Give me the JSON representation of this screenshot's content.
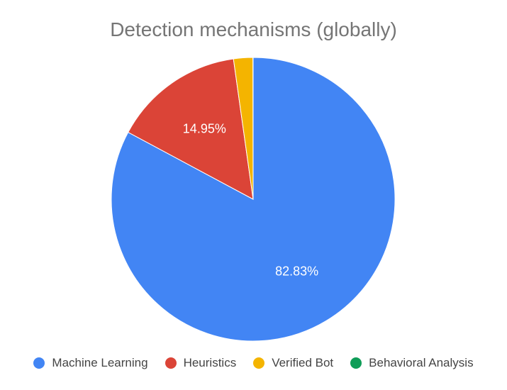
{
  "chart_data": {
    "type": "pie",
    "title": "Detection mechanisms (globally)",
    "slices": [
      {
        "label": "Machine Learning",
        "value": 82.83,
        "display": "82.83%",
        "color": "#4285F4"
      },
      {
        "label": "Heuristics",
        "value": 14.95,
        "display": "14.95%",
        "color": "#DB4437"
      },
      {
        "label": "Verified Bot",
        "value": 2.2,
        "display": "",
        "color": "#F4B400"
      },
      {
        "label": "Behavioral Analysis",
        "value": 0.02,
        "display": "",
        "color": "#0F9D58"
      }
    ],
    "legend_position": "bottom"
  }
}
